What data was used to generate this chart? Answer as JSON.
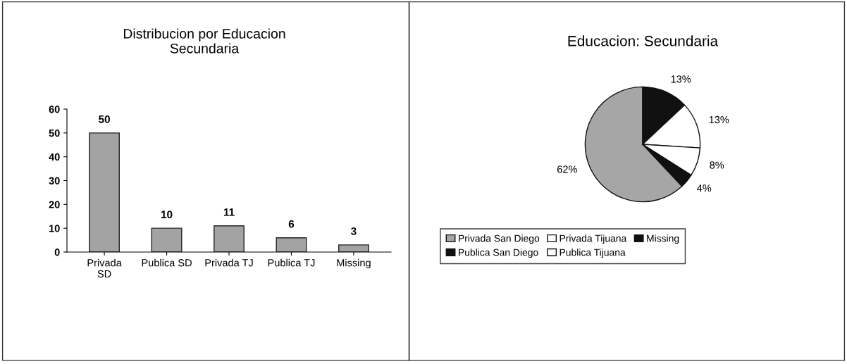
{
  "chart_data": [
    {
      "type": "bar",
      "title": "Distribucion por Educacion\nSecundaria",
      "categories": [
        "Privada\nSD",
        "Publica SD",
        "Privada TJ",
        "Publica TJ",
        "Missing"
      ],
      "values": [
        50,
        10,
        11,
        6,
        3
      ],
      "color": "#a3a3a3",
      "ylim": [
        0,
        60
      ],
      "yticks": [
        0,
        10,
        20,
        30,
        40,
        50,
        60
      ],
      "data_labels": true,
      "grid": false,
      "legend": false
    },
    {
      "type": "pie",
      "title": "Educacion: Secundaria",
      "categories": [
        "Privada San Diego",
        "Publica San Diego",
        "Privada Tijuana",
        "Publica Tijuana",
        "Missing"
      ],
      "values": [
        62,
        13,
        13,
        8,
        4
      ],
      "value_labels": [
        "62%",
        "13%",
        "13%",
        "8%",
        "4%"
      ],
      "colors": [
        "#a6a6a6",
        "#111111",
        "#ffffff",
        "#ffffff",
        "#111111"
      ],
      "legend": "bottom"
    }
  ]
}
